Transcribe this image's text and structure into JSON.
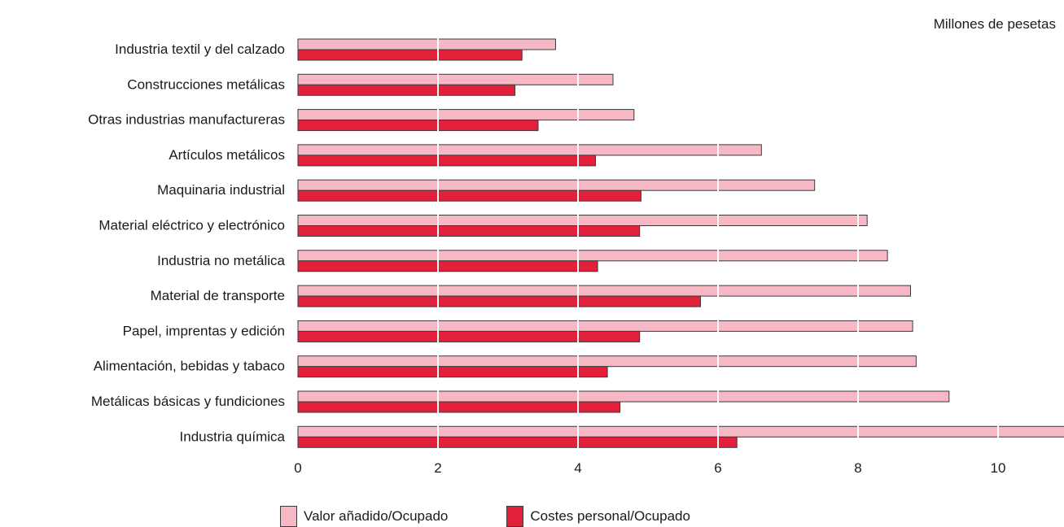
{
  "unit_label": "Millones de pesetas",
  "colors": {
    "valor": "#f7b8c6",
    "costes": "#e3203a",
    "border": "#3a3a3a",
    "grid": "#ffffff"
  },
  "chart_data": {
    "type": "bar",
    "orientation": "horizontal",
    "title": "",
    "xlabel": "",
    "ylabel": "",
    "xlim": [
      0,
      11
    ],
    "xticks": [
      0,
      2,
      4,
      6,
      8,
      10
    ],
    "grid": true,
    "legend_placement": "bottom",
    "categories": [
      "Industria textil y del calzado",
      "Construcciones metálicas",
      "Otras industrias manufactureras",
      "Artículos metálicos",
      "Maquinaria industrial",
      "Material eléctrico y electrónico",
      "Industria no metálica",
      "Material de transporte",
      "Papel, imprentas y edición",
      "Alimentación, bebidas y tabaco",
      "Metálicas básicas y fundiciones",
      "Industria química"
    ],
    "series": [
      {
        "name": "Valor añadido/Ocupado",
        "values": [
          3.68,
          4.5,
          4.8,
          6.62,
          7.38,
          8.13,
          8.42,
          8.75,
          8.78,
          8.83,
          9.3,
          10.95
        ]
      },
      {
        "name": "Costes personal/Ocupado",
        "values": [
          3.2,
          3.1,
          3.43,
          4.25,
          4.9,
          4.88,
          4.28,
          5.75,
          4.88,
          4.42,
          4.6,
          6.27
        ]
      }
    ]
  }
}
